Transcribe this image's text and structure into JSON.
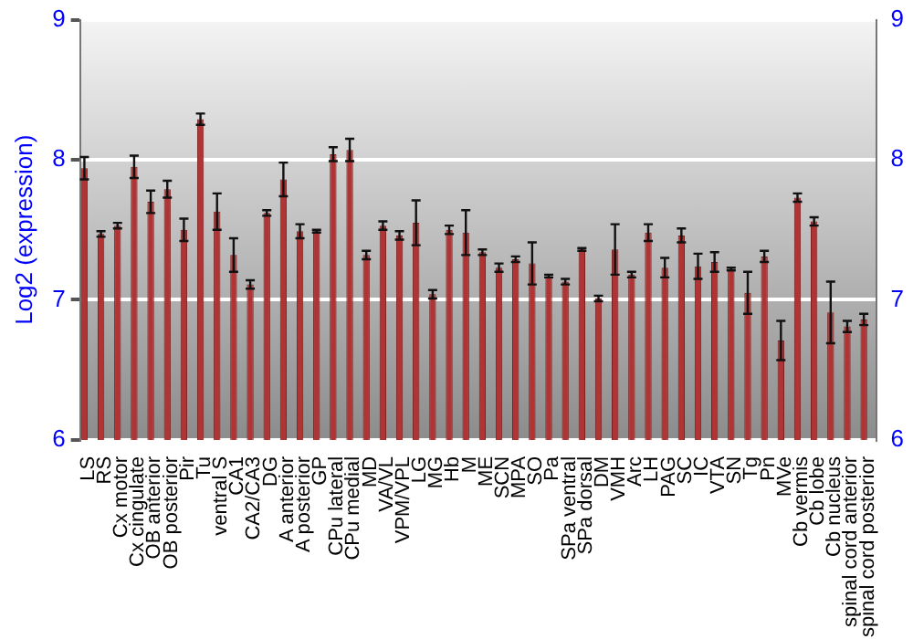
{
  "chart_data": {
    "type": "bar",
    "ylabel": "Log2 (expression)",
    "categories": [
      "LS",
      "RS",
      "Cx motor",
      "Cx cingulate",
      "OB anterior",
      "OB posterior",
      "Pir",
      "Tu",
      "ventral S",
      "CA1",
      "CA2/CA3",
      "DG",
      "A anterior",
      "A posterior",
      "GP",
      "CPu lateral",
      "CPu medial",
      "MD",
      "VA/VL",
      "VPM/VPL",
      "LG",
      "MG",
      "Hb",
      "M",
      "ME",
      "SCN",
      "MPA",
      "SO",
      "Pa",
      "SPa ventral",
      "SPa dorsal",
      "DM",
      "VMH",
      "Arc",
      "LH",
      "PAG",
      "SC",
      "IC",
      "VTA",
      "SN",
      "Tg",
      "Pn",
      "MVe",
      "Cb vermis",
      "Cb lobe",
      "Cb nucleus",
      "spinal cord anterior",
      "spinal cord posterior"
    ],
    "values": [
      7.94,
      7.47,
      7.53,
      7.95,
      7.7,
      7.79,
      7.5,
      8.29,
      7.63,
      7.32,
      7.11,
      7.62,
      7.86,
      7.49,
      7.49,
      8.04,
      8.07,
      7.32,
      7.53,
      7.46,
      7.55,
      7.04,
      7.5,
      7.48,
      7.34,
      7.23,
      7.29,
      7.26,
      7.17,
      7.13,
      7.36,
      7.01,
      7.36,
      7.18,
      7.48,
      7.23,
      7.46,
      7.24,
      7.27,
      7.22,
      7.05,
      7.31,
      6.71,
      7.73,
      7.56,
      6.91,
      6.81,
      6.86
    ],
    "errors": [
      0.08,
      0.02,
      0.02,
      0.08,
      0.08,
      0.06,
      0.08,
      0.04,
      0.13,
      0.12,
      0.03,
      0.02,
      0.12,
      0.05,
      0.01,
      0.05,
      0.08,
      0.03,
      0.03,
      0.03,
      0.16,
      0.03,
      0.03,
      0.16,
      0.02,
      0.03,
      0.02,
      0.15,
      0.01,
      0.02,
      0.01,
      0.02,
      0.18,
      0.02,
      0.06,
      0.07,
      0.05,
      0.09,
      0.07,
      0.01,
      0.15,
      0.04,
      0.14,
      0.03,
      0.03,
      0.22,
      0.04,
      0.04
    ],
    "color": "#b03434",
    "ylim": [
      6,
      9
    ],
    "yticks": [
      6,
      7,
      8,
      9
    ],
    "y2lim": [
      6,
      9
    ],
    "y2ticks": [
      6,
      7,
      8,
      9
    ],
    "grid": "y",
    "legend": false
  }
}
